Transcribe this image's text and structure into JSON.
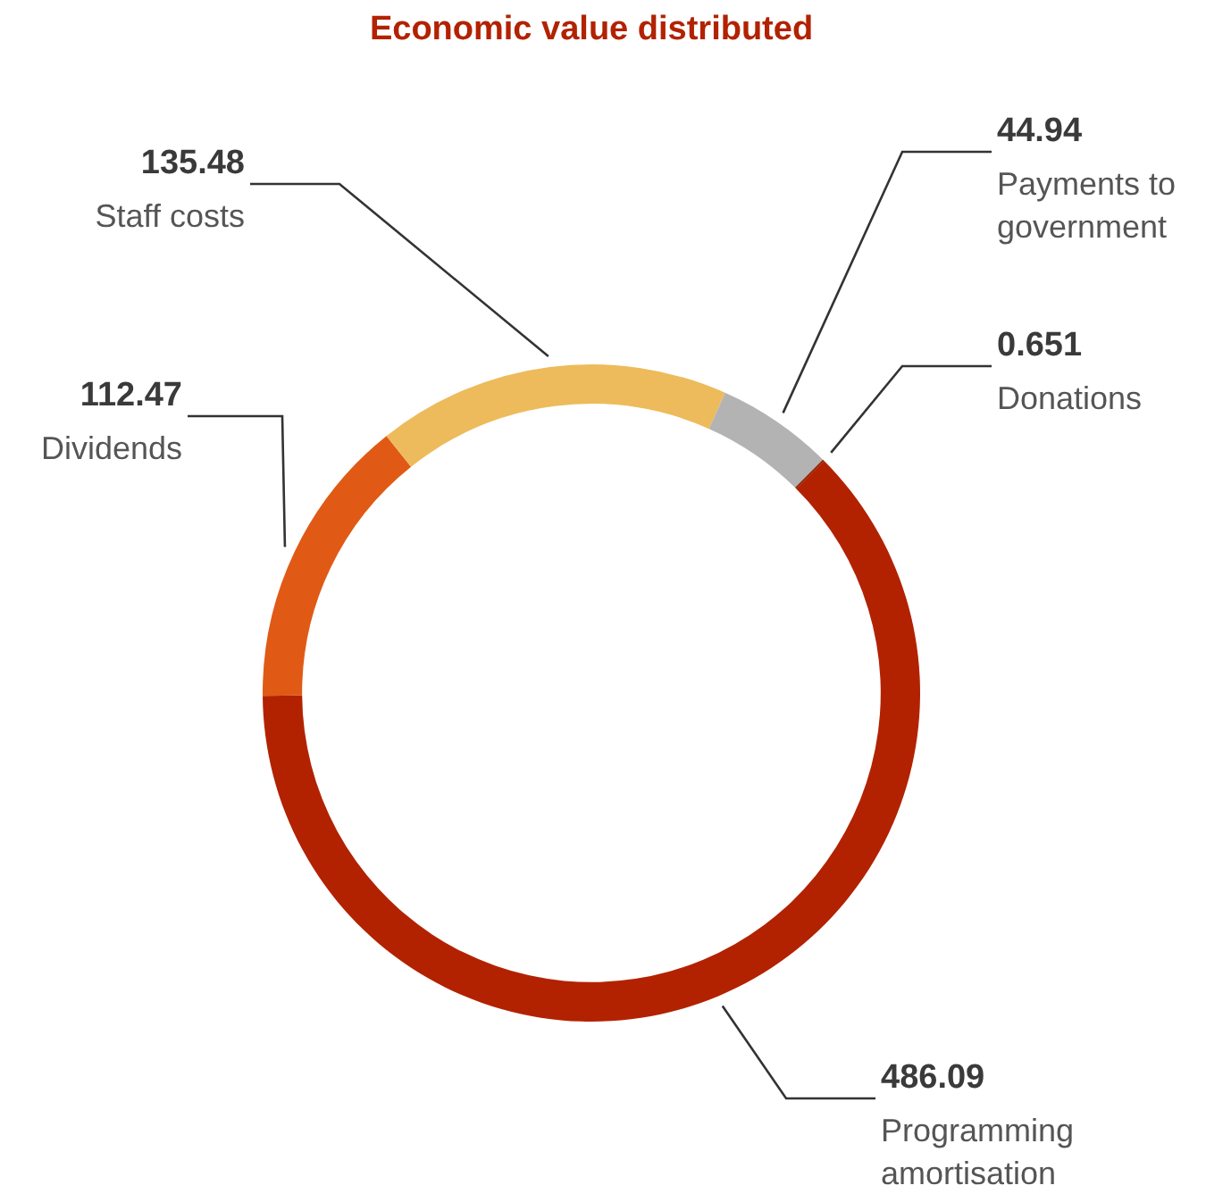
{
  "chart_data": {
    "type": "donut",
    "title": "Economic value distributed",
    "categories": [
      "Programming amortisation",
      "Dividends",
      "Staff costs",
      "Payments to government",
      "Donations"
    ],
    "values": [
      486.09,
      112.47,
      135.48,
      44.94,
      0.651
    ],
    "colors": [
      "#b22200",
      "#e05a16",
      "#edbb5b",
      "#b3b3b3",
      "#8c1c00"
    ],
    "data_labels": true,
    "legend": false
  }
}
